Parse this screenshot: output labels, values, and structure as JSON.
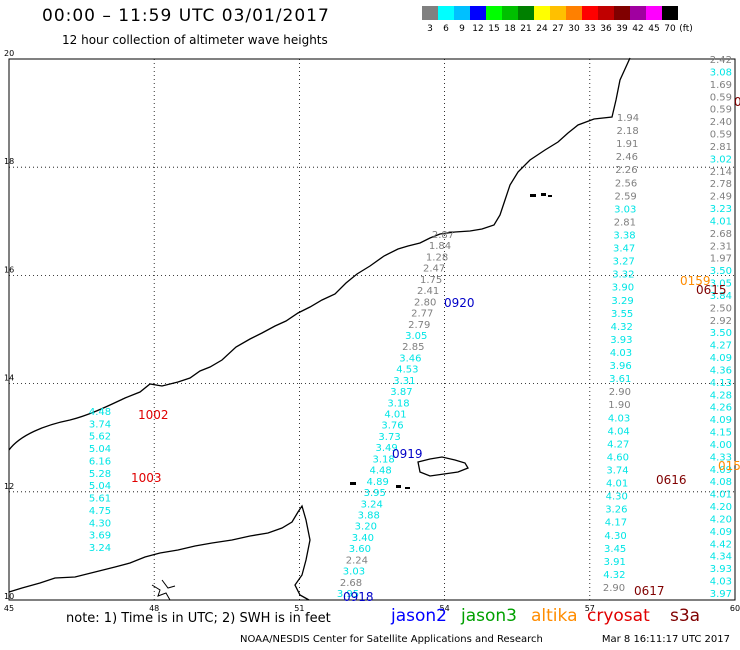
{
  "header": {
    "title": "00:00 – 11:59 UTC 03/01/2017",
    "subtitle": "12 hour collection of altimeter wave heights"
  },
  "legend": {
    "unit": "(ft)",
    "ticks": [
      "3",
      "6",
      "9",
      "12",
      "15",
      "18",
      "21",
      "24",
      "27",
      "30",
      "33",
      "36",
      "39",
      "42",
      "45",
      "70"
    ],
    "colors": [
      "#808080",
      "#00ffff",
      "#00c0ff",
      "#0000ff",
      "#00ff00",
      "#00c000",
      "#008000",
      "#ffff00",
      "#ffc000",
      "#ff8000",
      "#ff0000",
      "#c00000",
      "#800000",
      "#a000a0",
      "#ff00ff",
      "#000000"
    ]
  },
  "axes": {
    "x_ticks": [
      "45",
      "48",
      "51",
      "54",
      "57",
      "60"
    ],
    "y_ticks": [
      "10",
      "12",
      "14",
      "16",
      "18",
      "20"
    ]
  },
  "tracks": {
    "a": {
      "items": [
        {
          "v": "2.87",
          "c": "#808080"
        },
        {
          "v": "1.84",
          "c": "#808080"
        },
        {
          "v": "1.28",
          "c": "#808080"
        },
        {
          "v": "2.47",
          "c": "#808080"
        },
        {
          "v": "1.75",
          "c": "#808080"
        },
        {
          "v": "2.41",
          "c": "#808080"
        },
        {
          "v": "2.80",
          "c": "#808080"
        },
        {
          "v": "2.77",
          "c": "#808080"
        },
        {
          "v": "2.79",
          "c": "#808080"
        },
        {
          "v": "3.05",
          "c": "#00e5e5"
        },
        {
          "v": "2.85",
          "c": "#808080"
        },
        {
          "v": "3.46",
          "c": "#00e5e5"
        },
        {
          "v": "4.53",
          "c": "#00e5e5"
        },
        {
          "v": "3.31",
          "c": "#00e5e5"
        },
        {
          "v": "3.87",
          "c": "#00e5e5"
        },
        {
          "v": "3.18",
          "c": "#00e5e5"
        },
        {
          "v": "4.01",
          "c": "#00e5e5"
        },
        {
          "v": "3.76",
          "c": "#00e5e5"
        },
        {
          "v": "3.73",
          "c": "#00e5e5"
        },
        {
          "v": "3.49",
          "c": "#00e5e5"
        },
        {
          "v": "3.18",
          "c": "#00e5e5"
        },
        {
          "v": "4.48",
          "c": "#00e5e5"
        },
        {
          "v": "4.89",
          "c": "#00e5e5"
        },
        {
          "v": "3.95",
          "c": "#00e5e5"
        },
        {
          "v": "3.24",
          "c": "#00e5e5"
        },
        {
          "v": "3.88",
          "c": "#00e5e5"
        },
        {
          "v": "3.20",
          "c": "#00e5e5"
        },
        {
          "v": "3.40",
          "c": "#00e5e5"
        },
        {
          "v": "3.60",
          "c": "#00e5e5"
        },
        {
          "v": "2.24",
          "c": "#808080"
        },
        {
          "v": "3.03",
          "c": "#00e5e5"
        },
        {
          "v": "2.68",
          "c": "#808080"
        },
        {
          "v": "3.95",
          "c": "#00e5e5"
        }
      ]
    },
    "b": {
      "items": [
        {
          "v": "4.48",
          "c": "#00e5e5"
        },
        {
          "v": "3.74",
          "c": "#00e5e5"
        },
        {
          "v": "5.62",
          "c": "#00e5e5"
        },
        {
          "v": "5.04",
          "c": "#00e5e5"
        },
        {
          "v": "6.16",
          "c": "#00e5e5"
        },
        {
          "v": "5.28",
          "c": "#00e5e5"
        },
        {
          "v": "5.04",
          "c": "#00e5e5"
        },
        {
          "v": "5.61",
          "c": "#00e5e5"
        },
        {
          "v": "4.75",
          "c": "#00e5e5"
        },
        {
          "v": "4.30",
          "c": "#00e5e5"
        },
        {
          "v": "3.69",
          "c": "#00e5e5"
        },
        {
          "v": "3.24",
          "c": "#00e5e5"
        }
      ]
    },
    "c": {
      "items": [
        {
          "v": "1.94",
          "c": "#808080"
        },
        {
          "v": "2.18",
          "c": "#808080"
        },
        {
          "v": "1.91",
          "c": "#808080"
        },
        {
          "v": "2.46",
          "c": "#808080"
        },
        {
          "v": "2.26",
          "c": "#808080"
        },
        {
          "v": "2.56",
          "c": "#808080"
        },
        {
          "v": "2.59",
          "c": "#808080"
        },
        {
          "v": "3.03",
          "c": "#00e5e5"
        },
        {
          "v": "2.81",
          "c": "#808080"
        },
        {
          "v": "3.38",
          "c": "#00e5e5"
        },
        {
          "v": "3.47",
          "c": "#00e5e5"
        },
        {
          "v": "3.27",
          "c": "#00e5e5"
        },
        {
          "v": "3.32",
          "c": "#00e5e5"
        },
        {
          "v": "3.90",
          "c": "#00e5e5"
        },
        {
          "v": "3.29",
          "c": "#00e5e5"
        },
        {
          "v": "3.55",
          "c": "#00e5e5"
        },
        {
          "v": "4.32",
          "c": "#00e5e5"
        },
        {
          "v": "3.93",
          "c": "#00e5e5"
        },
        {
          "v": "4.03",
          "c": "#00e5e5"
        },
        {
          "v": "3.96",
          "c": "#00e5e5"
        },
        {
          "v": "3.61",
          "c": "#00e5e5"
        },
        {
          "v": "2.90",
          "c": "#808080"
        },
        {
          "v": "1.90",
          "c": "#808080"
        },
        {
          "v": "4.03",
          "c": "#00e5e5"
        },
        {
          "v": "4.04",
          "c": "#00e5e5"
        },
        {
          "v": "4.27",
          "c": "#00e5e5"
        },
        {
          "v": "4.60",
          "c": "#00e5e5"
        },
        {
          "v": "3.74",
          "c": "#00e5e5"
        },
        {
          "v": "4.01",
          "c": "#00e5e5"
        },
        {
          "v": "4.30",
          "c": "#00e5e5"
        },
        {
          "v": "3.26",
          "c": "#00e5e5"
        },
        {
          "v": "4.17",
          "c": "#00e5e5"
        },
        {
          "v": "4.30",
          "c": "#00e5e5"
        },
        {
          "v": "3.45",
          "c": "#00e5e5"
        },
        {
          "v": "3.91",
          "c": "#00e5e5"
        },
        {
          "v": "4.32",
          "c": "#00e5e5"
        },
        {
          "v": "2.90",
          "c": "#808080"
        }
      ]
    },
    "d": {
      "items": [
        {
          "v": "2.42",
          "c": "#808080"
        },
        {
          "v": "3.08",
          "c": "#00e5e5"
        },
        {
          "v": "1.69",
          "c": "#808080"
        },
        {
          "v": "0.59",
          "c": "#808080"
        },
        {
          "v": "0.59",
          "c": "#808080"
        },
        {
          "v": "2.40",
          "c": "#808080"
        },
        {
          "v": "0.59",
          "c": "#808080"
        },
        {
          "v": "2.81",
          "c": "#808080"
        },
        {
          "v": "3.02",
          "c": "#00e5e5"
        },
        {
          "v": "2.14",
          "c": "#808080"
        },
        {
          "v": "2.78",
          "c": "#808080"
        },
        {
          "v": "2.49",
          "c": "#808080"
        },
        {
          "v": "3.23",
          "c": "#00e5e5"
        },
        {
          "v": "4.01",
          "c": "#00e5e5"
        },
        {
          "v": "2.68",
          "c": "#808080"
        },
        {
          "v": "2.31",
          "c": "#808080"
        },
        {
          "v": "1.97",
          "c": "#808080"
        },
        {
          "v": "3.50",
          "c": "#00e5e5"
        },
        {
          "v": "3.05",
          "c": "#00e5e5"
        },
        {
          "v": "3.84",
          "c": "#00e5e5"
        },
        {
          "v": "2.50",
          "c": "#808080"
        },
        {
          "v": "2.92",
          "c": "#808080"
        },
        {
          "v": "3.50",
          "c": "#00e5e5"
        },
        {
          "v": "4.27",
          "c": "#00e5e5"
        },
        {
          "v": "4.09",
          "c": "#00e5e5"
        },
        {
          "v": "4.36",
          "c": "#00e5e5"
        },
        {
          "v": "4.13",
          "c": "#00e5e5"
        },
        {
          "v": "4.28",
          "c": "#00e5e5"
        },
        {
          "v": "4.26",
          "c": "#00e5e5"
        },
        {
          "v": "4.09",
          "c": "#00e5e5"
        },
        {
          "v": "4.15",
          "c": "#00e5e5"
        },
        {
          "v": "4.00",
          "c": "#00e5e5"
        },
        {
          "v": "4.33",
          "c": "#00e5e5"
        },
        {
          "v": "4.09",
          "c": "#00e5e5"
        },
        {
          "v": "4.08",
          "c": "#00e5e5"
        },
        {
          "v": "4.01",
          "c": "#00e5e5"
        },
        {
          "v": "4.20",
          "c": "#00e5e5"
        },
        {
          "v": "4.20",
          "c": "#00e5e5"
        },
        {
          "v": "4.09",
          "c": "#00e5e5"
        },
        {
          "v": "4.42",
          "c": "#00e5e5"
        },
        {
          "v": "4.34",
          "c": "#00e5e5"
        },
        {
          "v": "3.93",
          "c": "#00e5e5"
        },
        {
          "v": "4.03",
          "c": "#00e5e5"
        },
        {
          "v": "3.97",
          "c": "#00e5e5"
        }
      ]
    }
  },
  "time_markers": [
    {
      "label": "0920",
      "color": "#0000c8"
    },
    {
      "label": "0919",
      "color": "#0000c8"
    },
    {
      "label": "0918",
      "color": "#0000c8"
    },
    {
      "label": "1002",
      "color": "#e00000"
    },
    {
      "label": "1003",
      "color": "#e00000"
    },
    {
      "label": "0159",
      "color": "#ff8c00"
    },
    {
      "label": "015",
      "color": "#ff8c00"
    },
    {
      "label": "0615",
      "color": "#800000"
    },
    {
      "label": "0616",
      "color": "#800000"
    },
    {
      "label": "0617",
      "color": "#800000"
    },
    {
      "label": "0",
      "color": "#800000"
    }
  ],
  "note": "note: 1) Time is in UTC; 2) SWH is in feet",
  "satellites": [
    {
      "name": "jason2",
      "color": "#0000ff"
    },
    {
      "name": "jason3",
      "color": "#00a000"
    },
    {
      "name": "altika",
      "color": "#ff8c00"
    },
    {
      "name": "cryosat",
      "color": "#e00000"
    },
    {
      "name": "s3a",
      "color": "#800000"
    }
  ],
  "footer": {
    "credit": "NOAA/NESDIS Center for Satellite Applications and Research",
    "generated": "Mar  8 16:11:17 UTC 2017"
  }
}
